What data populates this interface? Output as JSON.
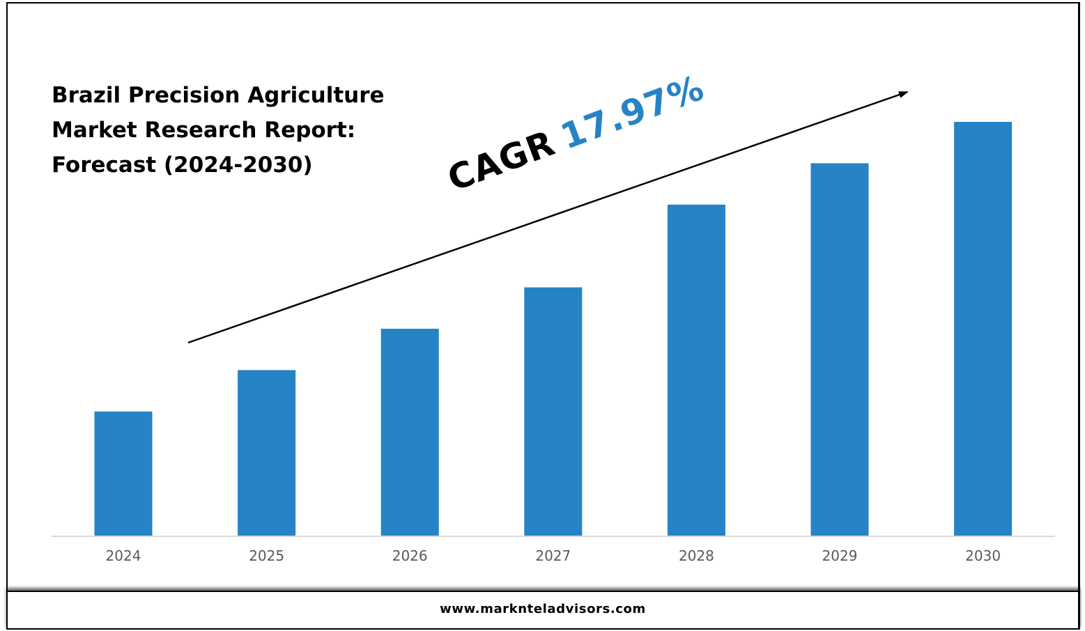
{
  "title_lines": [
    "Brazil Precision Agriculture",
    "Market Research Report:",
    "Forecast (2024-2030)"
  ],
  "cagr": {
    "label": "CAGR",
    "value": "17.97%"
  },
  "footer": {
    "url": "www.marknteladvisors.com"
  },
  "colors": {
    "bar": "#2683c6",
    "axis": "#d9d9d9",
    "tick_text": "#595959",
    "cagr_value": "#2683c6"
  },
  "chart_data": {
    "type": "bar",
    "categories": [
      "2024",
      "2025",
      "2026",
      "2027",
      "2028",
      "2029",
      "2030"
    ],
    "values": [
      30,
      40,
      50,
      60,
      80,
      90,
      100
    ],
    "ylim": [
      0,
      100
    ],
    "xlabel": "",
    "ylabel": "",
    "grid": false,
    "legend": "none",
    "annotation": "CAGR 17.97%"
  }
}
